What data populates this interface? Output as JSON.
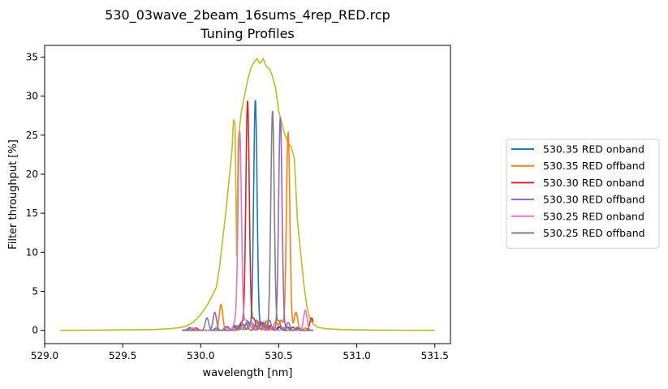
{
  "chart_data": {
    "type": "line",
    "title": "530_03wave_2beam_16sums_4rep_RED.rcp",
    "subtitle": "Tuning Profiles",
    "xlabel": "wavelength [nm]",
    "ylabel": "Filter throughput [%]",
    "xlim": [
      529.0,
      531.6
    ],
    "ylim": [
      -1.7,
      36.5
    ],
    "xticks": [
      529.0,
      529.5,
      530.0,
      530.5,
      531.0,
      531.5
    ],
    "xtick_labels": [
      "529.0",
      "529.5",
      "530.0",
      "530.5",
      "531.0",
      "531.5"
    ],
    "yticks": [
      0,
      5,
      10,
      15,
      20,
      25,
      30,
      35
    ],
    "ytick_labels": [
      "0",
      "5",
      "10",
      "15",
      "20",
      "25",
      "30",
      "35"
    ],
    "grid": false,
    "legend_position": "outside-right",
    "series": [
      {
        "name": "530.35 RED onband",
        "color": "#1f77b4",
        "peaks": [
          [
            529.93,
            0.35
          ],
          [
            530.1,
            0.3
          ],
          [
            530.21,
            0.4
          ],
          [
            530.265,
            0.8
          ],
          [
            530.3,
            1.2
          ],
          [
            530.35,
            29.5
          ],
          [
            530.4,
            1.0
          ],
          [
            530.44,
            0.6
          ],
          [
            530.5,
            0.5
          ],
          [
            530.56,
            0.4
          ],
          [
            530.63,
            0.3
          ]
        ],
        "width": 0.011
      },
      {
        "name": "530.35 RED offband",
        "color": "#ff7f0e",
        "peaks": [
          [
            529.95,
            0.3
          ],
          [
            530.13,
            3.3
          ],
          [
            530.26,
            0.5
          ],
          [
            530.31,
            0.8
          ],
          [
            530.36,
            1.0
          ],
          [
            530.42,
            1.2
          ],
          [
            530.48,
            1.1
          ],
          [
            530.515,
            1.3
          ],
          [
            530.56,
            25.3
          ],
          [
            530.61,
            2.3
          ],
          [
            530.67,
            0.3
          ]
        ],
        "width": 0.011
      },
      {
        "name": "530.30 RED onband",
        "color": "#d62728",
        "peaks": [
          [
            529.97,
            0.3
          ],
          [
            530.17,
            0.5
          ],
          [
            530.22,
            0.6
          ],
          [
            530.26,
            1.0
          ],
          [
            530.3,
            29.4
          ],
          [
            530.34,
            1.5
          ],
          [
            530.39,
            1.0
          ],
          [
            530.45,
            0.6
          ],
          [
            530.51,
            0.5
          ],
          [
            530.59,
            0.4
          ],
          [
            530.71,
            1.6
          ]
        ],
        "width": 0.011
      },
      {
        "name": "530.30 RED offband",
        "color": "#9467bd",
        "peaks": [
          [
            529.92,
            0.2
          ],
          [
            530.09,
            2.3
          ],
          [
            530.22,
            0.5
          ],
          [
            530.27,
            0.8
          ],
          [
            530.32,
            1.0
          ],
          [
            530.38,
            1.2
          ],
          [
            530.44,
            1.3
          ],
          [
            530.51,
            27.3
          ],
          [
            530.56,
            1.0
          ],
          [
            530.62,
            0.4
          ]
        ],
        "width": 0.011
      },
      {
        "name": "530.25 RED onband",
        "color": "#e377c2",
        "peaks": [
          [
            529.95,
            0.3
          ],
          [
            530.16,
            0.5
          ],
          [
            530.22,
            1.0
          ],
          [
            530.25,
            25.5
          ],
          [
            530.29,
            1.3
          ],
          [
            530.33,
            1.0
          ],
          [
            530.39,
            0.6
          ],
          [
            530.46,
            0.5
          ],
          [
            530.53,
            0.4
          ],
          [
            530.67,
            2.6
          ]
        ],
        "width": 0.011
      },
      {
        "name": "530.25 RED offband",
        "color": "#7f7f7f",
        "peaks": [
          [
            530.04,
            1.6
          ],
          [
            530.17,
            0.5
          ],
          [
            530.24,
            0.6
          ],
          [
            530.29,
            0.8
          ],
          [
            530.36,
            1.3
          ],
          [
            530.41,
            1.0
          ],
          [
            530.46,
            28.1
          ],
          [
            530.5,
            1.2
          ],
          [
            530.55,
            0.5
          ],
          [
            530.62,
            0.3
          ]
        ],
        "width": 0.011
      }
    ],
    "envelope": {
      "color": "#bcbd22",
      "x": [
        529.1,
        529.3,
        529.5,
        529.7,
        529.8,
        529.85,
        529.9,
        529.95,
        530.0,
        530.05,
        530.1,
        530.12,
        530.14,
        530.16,
        530.18,
        530.2,
        530.21,
        530.22,
        530.23,
        530.24,
        530.26,
        530.28,
        530.3,
        530.32,
        530.34,
        530.36,
        530.38,
        530.4,
        530.42,
        530.44,
        530.46,
        530.48,
        530.5,
        530.52,
        530.54,
        530.56,
        530.58,
        530.6,
        530.62,
        530.64,
        530.66,
        530.68,
        530.7,
        530.72,
        530.75,
        530.8,
        530.9,
        531.0,
        531.1,
        531.3,
        531.5
      ],
      "y": [
        0,
        0.02,
        0.05,
        0.1,
        0.2,
        0.3,
        0.5,
        1.0,
        2.0,
        3.5,
        5.5,
        8.0,
        11.5,
        15.0,
        19.0,
        23.0,
        27.0,
        26.5,
        9.5,
        24.5,
        28.0,
        30.0,
        32.0,
        33.5,
        34.3,
        34.8,
        34.2,
        34.8,
        33.8,
        33.5,
        32.5,
        31.0,
        28.0,
        26.5,
        25.0,
        24.0,
        23.5,
        22.0,
        14.0,
        10.0,
        6.0,
        3.0,
        1.5,
        0.8,
        0.4,
        0.2,
        0.1,
        0.05,
        0.03,
        0.01,
        0
      ]
    }
  }
}
